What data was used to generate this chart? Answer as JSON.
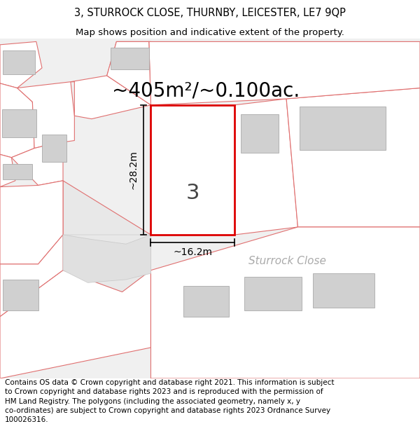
{
  "title_line1": "3, STURROCK CLOSE, THURNBY, LEICESTER, LE7 9QP",
  "title_line2": "Map shows position and indicative extent of the property.",
  "area_label": "~405m²/~0.100ac.",
  "dim_height": "~28.2m",
  "dim_width": "~16.2m",
  "plot_number": "3",
  "road_label": "Sturrock Close",
  "footer_text": "Contains OS data © Crown copyright and database right 2021. This information is subject to Crown copyright and database rights 2023 and is reproduced with the permission of HM Land Registry. The polygons (including the associated geometry, namely x, y co-ordinates) are subject to Crown copyright and database rights 2023 Ordnance Survey 100026316.",
  "bg_color": "#ffffff",
  "map_bg": "#f0f0f0",
  "parcel_edge_color": "#e07070",
  "highlight_color": "#dd0000",
  "building_fill": "#d0d0d0",
  "building_edge": "#aaaaaa",
  "road_color": "#e8e8e8",
  "text_color": "#000000",
  "title_fontsize": 10.5,
  "subtitle_fontsize": 9.5,
  "area_fontsize": 20,
  "dim_fontsize": 10,
  "plot_num_fontsize": 22,
  "road_fontsize": 11,
  "footer_fontsize": 7.5
}
